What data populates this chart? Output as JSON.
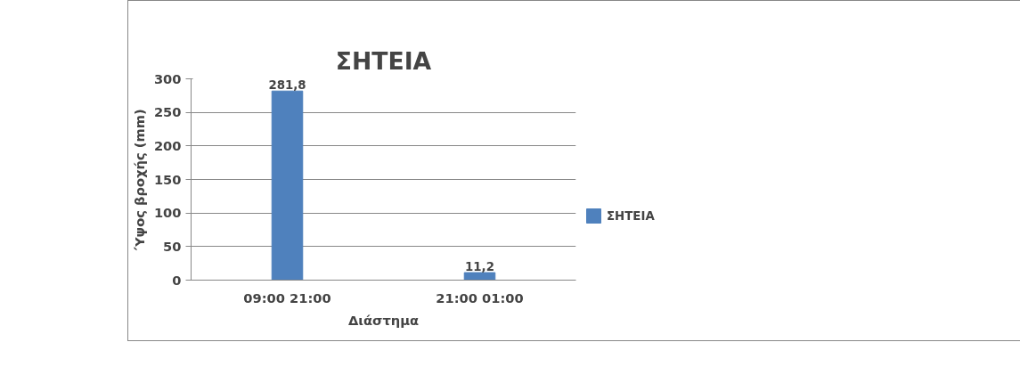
{
  "chart_data": {
    "type": "bar",
    "title": "ΣΗΤΕΙΑ",
    "xlabel": "Διάστημα",
    "ylabel": "Ύψος βροχής (mm)",
    "categories": [
      "09:00 21:00",
      "21:00 01:00"
    ],
    "series": [
      {
        "name": "ΣΗΤΕΙΑ",
        "color": "#4f81bd",
        "values": [
          281.8,
          11.2
        ],
        "value_labels": [
          "281,8",
          "11,2"
        ]
      }
    ],
    "ylim": [
      0,
      300
    ],
    "yticks": [
      0,
      50,
      100,
      150,
      200,
      250,
      300
    ],
    "grid": "y",
    "legend": "right"
  }
}
